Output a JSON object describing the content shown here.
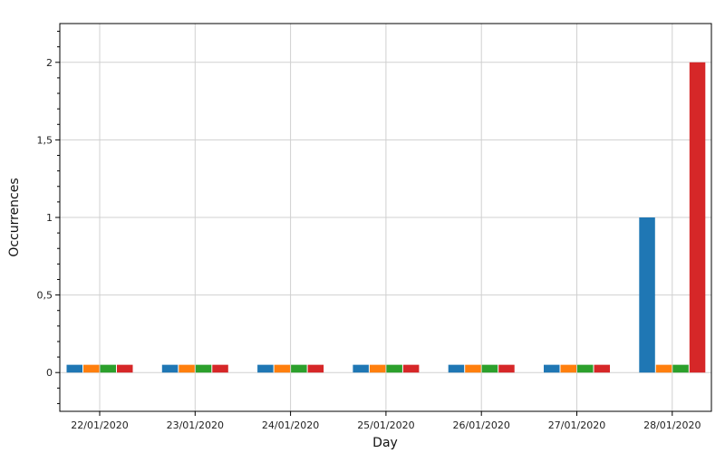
{
  "chart_data": {
    "type": "bar",
    "xlabel": "Day",
    "ylabel": "Occurrences",
    "categories": [
      "22/01/2020",
      "23/01/2020",
      "24/01/2020",
      "25/01/2020",
      "26/01/2020",
      "27/01/2020",
      "28/01/2020"
    ],
    "series": [
      {
        "color": "#1f77b4",
        "values": [
          0.05,
          0.05,
          0.05,
          0.05,
          0.05,
          0.05,
          1
        ]
      },
      {
        "color": "#ff7f0e",
        "values": [
          0.05,
          0.05,
          0.05,
          0.05,
          0.05,
          0.05,
          0.05
        ]
      },
      {
        "color": "#2ca02c",
        "values": [
          0.05,
          0.05,
          0.05,
          0.05,
          0.05,
          0.05,
          0.05
        ]
      },
      {
        "color": "#d62728",
        "values": [
          0.05,
          0.05,
          0.05,
          0.05,
          0.05,
          0.05,
          2
        ]
      }
    ],
    "ylim": [
      -0.25,
      2.25
    ],
    "yticks": [
      0,
      0.5,
      1,
      1.5,
      2
    ],
    "ytick_labels": [
      "0",
      "0,5",
      "1",
      "1,5",
      "2"
    ],
    "grid": true,
    "legend": "none"
  }
}
